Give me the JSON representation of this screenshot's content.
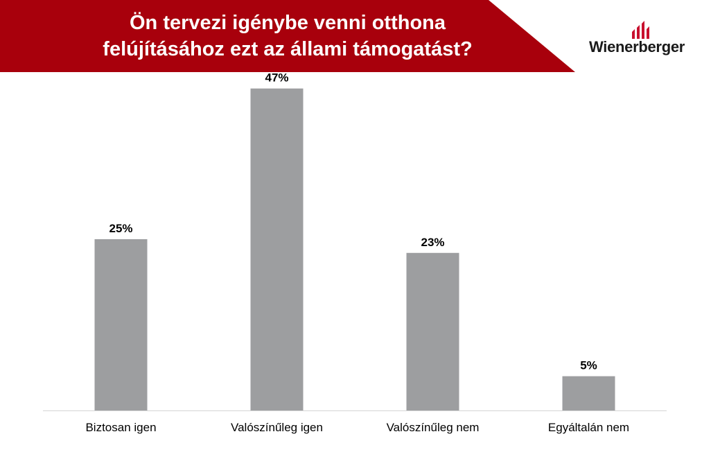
{
  "header": {
    "title_line1": "Ön tervezi igénybe venni otthona",
    "title_line2": "felújításához ezt az állami támogatást?",
    "banner_color": "#a8000c"
  },
  "logo": {
    "text": "Wienerberger",
    "mark_color": "#c8102e"
  },
  "chart_data": {
    "type": "bar",
    "categories": [
      "Biztosan igen",
      "Valószínűleg igen",
      "Valószínűleg nem",
      "Egyáltalán nem"
    ],
    "values": [
      25,
      47,
      23,
      5
    ],
    "data_labels": [
      "25%",
      "47%",
      "23%",
      "5%"
    ],
    "unit": "%",
    "ylim": [
      0,
      50
    ],
    "bar_color": "#9d9ea0",
    "grid": false,
    "legend": "none"
  }
}
